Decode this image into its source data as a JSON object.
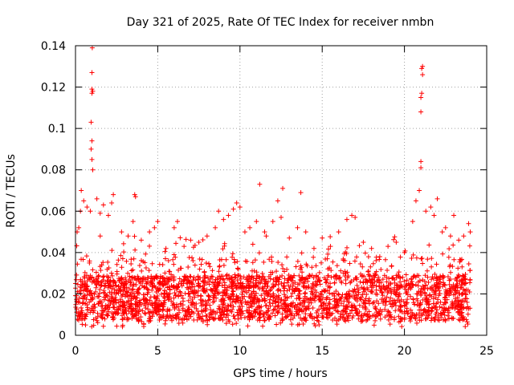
{
  "chart_data": {
    "type": "scatter",
    "title": "Day 321 of 2025, Rate Of TEC Index for receiver nmbn",
    "xlabel": "GPS time / hours",
    "ylabel": "ROTI / TECUs",
    "xlim": [
      0,
      25
    ],
    "ylim": [
      0,
      0.14
    ],
    "x_ticks": [
      0,
      5,
      10,
      15,
      20,
      25
    ],
    "x_tick_labels": [
      "0",
      "5",
      "10",
      "15",
      "20",
      "25"
    ],
    "y_ticks": [
      0,
      0.02,
      0.04,
      0.06,
      0.08,
      0.1,
      0.12,
      0.14
    ],
    "y_tick_labels": [
      "0",
      "0.02",
      "0.04",
      "0.06",
      "0.08",
      "0.1",
      "0.12",
      "0.14"
    ],
    "grid": true,
    "marker": "+",
    "color": "#ff0000",
    "data_x_range": [
      0,
      24
    ],
    "series": [
      {
        "description": "dense band of ROTI values between about 0.005 and 0.04 across the whole day",
        "points": [
          [
            0.0,
            0.025
          ],
          [
            0.1,
            0.05
          ],
          [
            0.2,
            0.052
          ],
          [
            0.3,
            0.06
          ],
          [
            0.35,
            0.07
          ],
          [
            0.5,
            0.065
          ],
          [
            0.7,
            0.062
          ],
          [
            0.9,
            0.06
          ],
          [
            0.95,
            0.09
          ],
          [
            1.0,
            0.094
          ],
          [
            1.0,
            0.085
          ],
          [
            1.05,
            0.08
          ],
          [
            0.95,
            0.103
          ],
          [
            1.0,
            0.117
          ],
          [
            1.0,
            0.119
          ],
          [
            1.05,
            0.118
          ],
          [
            1.0,
            0.127
          ],
          [
            1.02,
            0.139
          ],
          [
            1.3,
            0.066
          ],
          [
            1.5,
            0.059
          ],
          [
            1.7,
            0.063
          ],
          [
            2.0,
            0.058
          ],
          [
            2.2,
            0.064
          ],
          [
            2.3,
            0.068
          ],
          [
            2.8,
            0.05
          ],
          [
            3.2,
            0.048
          ],
          [
            3.5,
            0.055
          ],
          [
            3.6,
            0.068
          ],
          [
            3.65,
            0.067
          ],
          [
            4.0,
            0.046
          ],
          [
            4.5,
            0.05
          ],
          [
            4.8,
            0.052
          ],
          [
            5.0,
            0.055
          ],
          [
            5.5,
            0.042
          ],
          [
            6.0,
            0.052
          ],
          [
            6.2,
            0.055
          ],
          [
            6.6,
            0.043
          ],
          [
            7.0,
            0.046
          ],
          [
            7.5,
            0.045
          ],
          [
            8.0,
            0.048
          ],
          [
            8.5,
            0.052
          ],
          [
            8.7,
            0.06
          ],
          [
            9.0,
            0.056
          ],
          [
            9.3,
            0.058
          ],
          [
            9.6,
            0.061
          ],
          [
            9.8,
            0.064
          ],
          [
            10.0,
            0.062
          ],
          [
            10.3,
            0.05
          ],
          [
            10.6,
            0.052
          ],
          [
            11.0,
            0.055
          ],
          [
            11.2,
            0.073
          ],
          [
            11.5,
            0.05
          ],
          [
            12.0,
            0.055
          ],
          [
            12.3,
            0.065
          ],
          [
            12.5,
            0.057
          ],
          [
            12.6,
            0.071
          ],
          [
            13.0,
            0.047
          ],
          [
            13.5,
            0.052
          ],
          [
            13.7,
            0.069
          ],
          [
            14.0,
            0.05
          ],
          [
            14.5,
            0.042
          ],
          [
            15.0,
            0.047
          ],
          [
            15.5,
            0.043
          ],
          [
            16.0,
            0.05
          ],
          [
            16.5,
            0.056
          ],
          [
            16.8,
            0.058
          ],
          [
            17.0,
            0.057
          ],
          [
            17.5,
            0.045
          ],
          [
            18.0,
            0.042
          ],
          [
            18.5,
            0.038
          ],
          [
            19.0,
            0.043
          ],
          [
            19.5,
            0.045
          ],
          [
            20.0,
            0.04
          ],
          [
            20.5,
            0.055
          ],
          [
            20.7,
            0.065
          ],
          [
            20.9,
            0.07
          ],
          [
            21.0,
            0.081
          ],
          [
            21.0,
            0.084
          ],
          [
            21.0,
            0.108
          ],
          [
            21.0,
            0.115
          ],
          [
            21.05,
            0.117
          ],
          [
            21.1,
            0.126
          ],
          [
            21.1,
            0.13
          ],
          [
            21.05,
            0.129
          ],
          [
            21.3,
            0.06
          ],
          [
            21.6,
            0.062
          ],
          [
            21.8,
            0.058
          ],
          [
            22.0,
            0.066
          ],
          [
            22.3,
            0.05
          ],
          [
            22.5,
            0.052
          ],
          [
            22.8,
            0.048
          ],
          [
            23.0,
            0.058
          ],
          [
            23.3,
            0.046
          ],
          [
            23.6,
            0.048
          ],
          [
            23.9,
            0.054
          ],
          [
            24.0,
            0.05
          ]
        ],
        "band": {
          "min": 0.004,
          "typical_max": 0.035
        }
      }
    ]
  }
}
